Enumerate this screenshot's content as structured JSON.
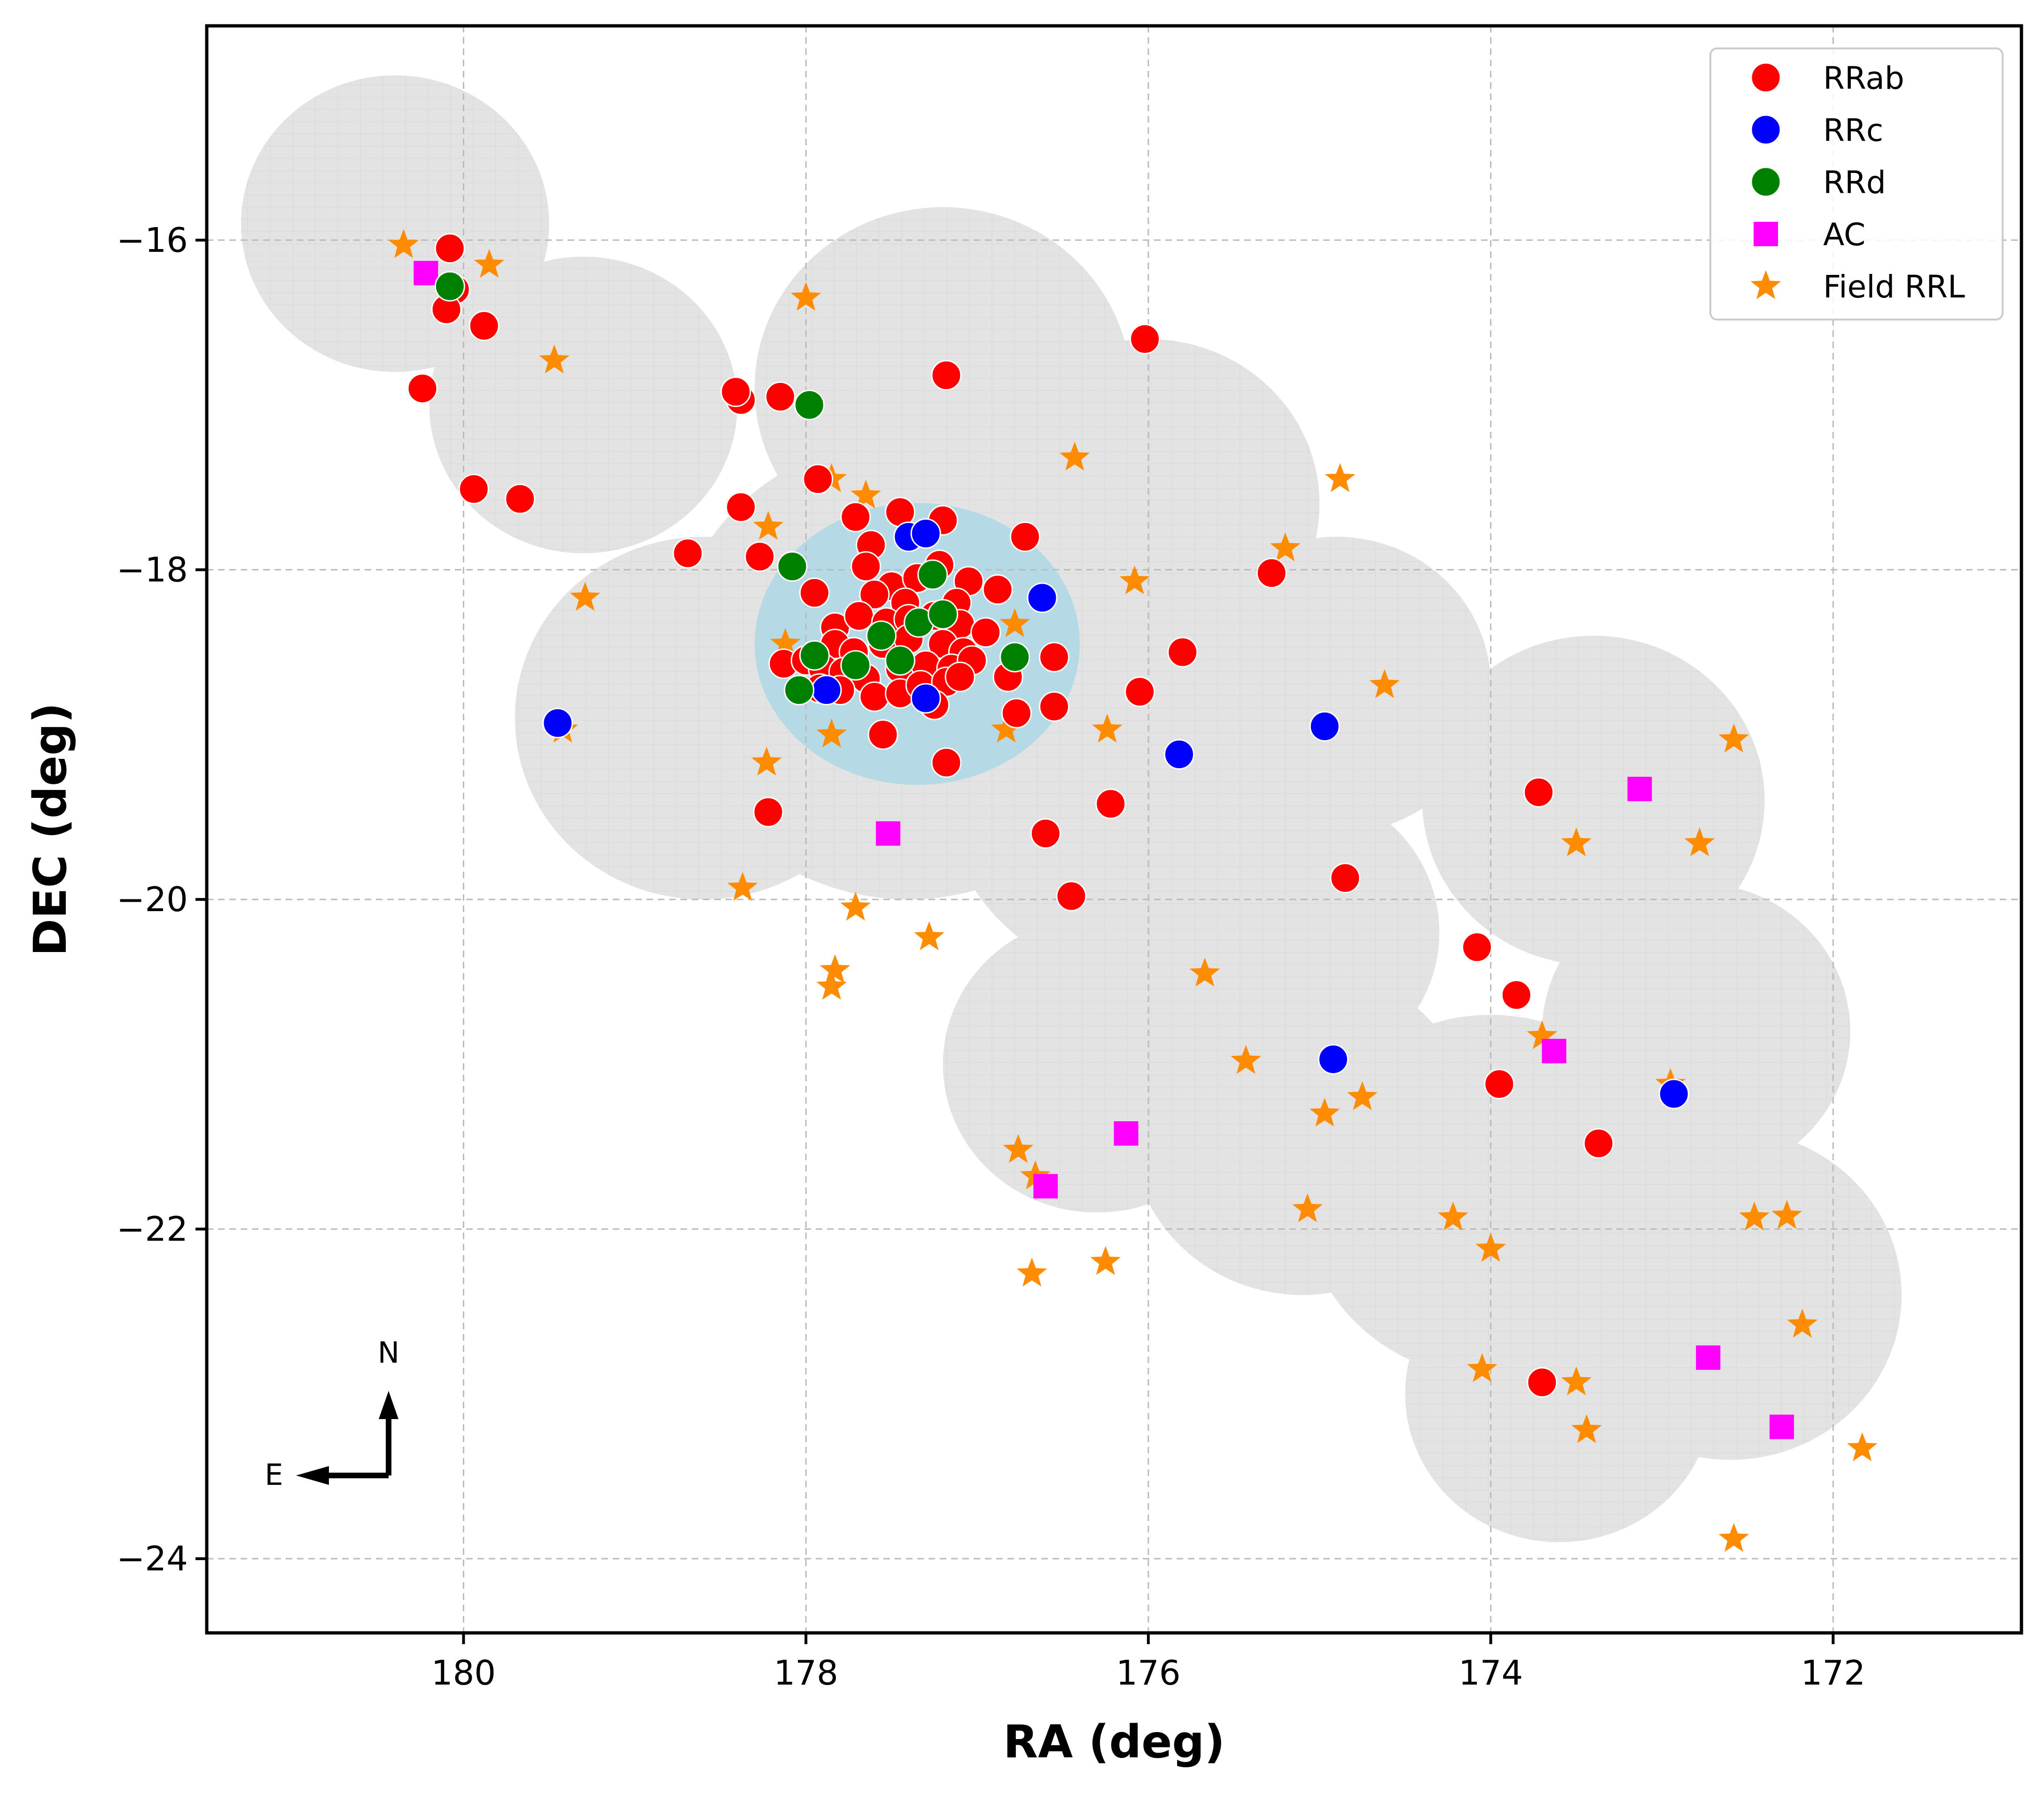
{
  "chart_data": {
    "type": "scatter",
    "title": "",
    "xlabel": "RA (deg)",
    "ylabel": "DEC (deg)",
    "xlim": [
      181.5,
      170.9
    ],
    "ylim": [
      -24.45,
      -14.7
    ],
    "x_inverted": true,
    "xticks": [
      180,
      178,
      176,
      174,
      172
    ],
    "yticks": [
      -16,
      -18,
      -20,
      -22,
      -24
    ],
    "xtick_labels": [
      "180",
      "178",
      "176",
      "174",
      "172"
    ],
    "ytick_labels": [
      "−16",
      "−18",
      "−20",
      "−22",
      "−24"
    ],
    "grid": true,
    "legend_position": "top-right",
    "compass": {
      "north_label": "N",
      "east_label": "E"
    },
    "footprint": {
      "description": "light grey survey footprint with light blue central field",
      "grey_blobs": [
        {
          "center": [
            180.4,
            -15.9
          ],
          "radius": 0.9
        },
        {
          "center": [
            179.3,
            -17.0
          ],
          "radius": 0.9
        },
        {
          "center": [
            177.2,
            -16.9
          ],
          "radius": 1.1
        },
        {
          "center": [
            176.0,
            -17.6
          ],
          "radius": 1.0
        },
        {
          "center": [
            178.6,
            -18.9
          ],
          "radius": 1.1
        },
        {
          "center": [
            177.4,
            -18.6
          ],
          "radius": 1.4
        },
        {
          "center": [
            176.0,
            -19.3
          ],
          "radius": 1.2
        },
        {
          "center": [
            174.9,
            -18.7
          ],
          "radius": 0.9
        },
        {
          "center": [
            175.2,
            -20.2
          ],
          "radius": 0.9
        },
        {
          "center": [
            176.3,
            -21.0
          ],
          "radius": 0.9
        },
        {
          "center": [
            175.1,
            -21.4
          ],
          "radius": 1.0
        },
        {
          "center": [
            174.0,
            -21.8
          ],
          "radius": 1.1
        },
        {
          "center": [
            173.4,
            -19.4
          ],
          "radius": 1.0
        },
        {
          "center": [
            172.8,
            -20.8
          ],
          "radius": 0.9
        },
        {
          "center": [
            172.6,
            -22.4
          ],
          "radius": 1.0
        },
        {
          "center": [
            173.6,
            -23.0
          ],
          "radius": 0.9
        }
      ],
      "central_field": {
        "center": [
          177.35,
          -18.45
        ],
        "radius": 0.95
      }
    },
    "series": [
      {
        "name": "RRab",
        "marker": "circle",
        "color": "#ff0000",
        "points": [
          [
            180.08,
            -16.05
          ],
          [
            180.05,
            -16.3
          ],
          [
            180.1,
            -16.42
          ],
          [
            179.88,
            -16.52
          ],
          [
            180.24,
            -16.9
          ],
          [
            179.94,
            -17.51
          ],
          [
            179.67,
            -17.57
          ],
          [
            178.38,
            -16.97
          ],
          [
            178.41,
            -16.92
          ],
          [
            178.15,
            -16.95
          ],
          [
            177.18,
            -16.82
          ],
          [
            176.02,
            -16.6
          ],
          [
            178.69,
            -17.9
          ],
          [
            178.38,
            -17.62
          ],
          [
            178.27,
            -17.92
          ],
          [
            177.93,
            -17.45
          ],
          [
            177.71,
            -17.68
          ],
          [
            177.45,
            -17.65
          ],
          [
            177.2,
            -17.7
          ],
          [
            177.62,
            -17.85
          ],
          [
            177.65,
            -17.98
          ],
          [
            176.72,
            -17.8
          ],
          [
            177.95,
            -18.14
          ],
          [
            177.83,
            -18.35
          ],
          [
            177.22,
            -17.97
          ],
          [
            177.05,
            -18.07
          ],
          [
            176.88,
            -18.12
          ],
          [
            177.12,
            -18.2
          ],
          [
            177.5,
            -18.1
          ],
          [
            177.35,
            -18.05
          ],
          [
            177.42,
            -18.2
          ],
          [
            177.6,
            -18.15
          ],
          [
            177.69,
            -18.28
          ],
          [
            177.53,
            -18.32
          ],
          [
            177.4,
            -18.3
          ],
          [
            177.25,
            -18.28
          ],
          [
            177.1,
            -18.33
          ],
          [
            176.95,
            -18.38
          ],
          [
            177.83,
            -18.45
          ],
          [
            177.72,
            -18.5
          ],
          [
            177.55,
            -18.45
          ],
          [
            177.4,
            -18.42
          ],
          [
            177.2,
            -18.45
          ],
          [
            177.08,
            -18.5
          ],
          [
            178.13,
            -18.57
          ],
          [
            178.0,
            -18.55
          ],
          [
            177.9,
            -18.6
          ],
          [
            177.78,
            -18.62
          ],
          [
            177.65,
            -18.66
          ],
          [
            177.45,
            -18.6
          ],
          [
            177.3,
            -18.58
          ],
          [
            177.15,
            -18.6
          ],
          [
            177.03,
            -18.55
          ],
          [
            177.92,
            -18.72
          ],
          [
            177.8,
            -18.73
          ],
          [
            177.6,
            -18.77
          ],
          [
            177.45,
            -18.75
          ],
          [
            177.33,
            -18.7
          ],
          [
            177.18,
            -18.68
          ],
          [
            177.25,
            -18.82
          ],
          [
            177.1,
            -18.65
          ],
          [
            177.55,
            -19.0
          ],
          [
            176.82,
            -18.65
          ],
          [
            176.77,
            -18.87
          ],
          [
            176.55,
            -18.53
          ],
          [
            176.55,
            -18.83
          ],
          [
            175.8,
            -18.5
          ],
          [
            176.05,
            -18.74
          ],
          [
            177.18,
            -19.17
          ],
          [
            178.22,
            -19.47
          ],
          [
            176.6,
            -19.6
          ],
          [
            176.22,
            -19.42
          ],
          [
            176.45,
            -19.98
          ],
          [
            175.28,
            -18.02
          ],
          [
            174.85,
            -19.87
          ],
          [
            173.72,
            -19.35
          ],
          [
            174.08,
            -20.29
          ],
          [
            173.85,
            -20.58
          ],
          [
            173.95,
            -21.12
          ],
          [
            173.37,
            -21.48
          ],
          [
            173.7,
            -22.93
          ]
        ]
      },
      {
        "name": "RRc",
        "marker": "circle",
        "color": "#0000ff",
        "points": [
          [
            177.4,
            -17.8
          ],
          [
            177.3,
            -17.78
          ],
          [
            176.62,
            -18.17
          ],
          [
            177.88,
            -18.73
          ],
          [
            177.3,
            -18.78
          ],
          [
            179.45,
            -18.93
          ],
          [
            175.82,
            -19.12
          ],
          [
            174.97,
            -18.95
          ],
          [
            174.92,
            -20.97
          ],
          [
            172.93,
            -21.18
          ]
        ]
      },
      {
        "name": "RRd",
        "marker": "circle",
        "color": "#008000",
        "points": [
          [
            180.08,
            -16.28
          ],
          [
            177.98,
            -17.0
          ],
          [
            178.08,
            -17.98
          ],
          [
            177.26,
            -18.03
          ],
          [
            177.34,
            -18.32
          ],
          [
            177.2,
            -18.27
          ],
          [
            177.56,
            -18.4
          ],
          [
            177.45,
            -18.55
          ],
          [
            177.95,
            -18.52
          ],
          [
            177.71,
            -18.58
          ],
          [
            178.04,
            -18.73
          ],
          [
            176.78,
            -18.53
          ]
        ]
      },
      {
        "name": "AC",
        "marker": "square",
        "color": "#ff00ff",
        "points": [
          [
            180.22,
            -16.2
          ],
          [
            177.52,
            -19.6
          ],
          [
            176.13,
            -21.42
          ],
          [
            176.6,
            -21.74
          ],
          [
            173.13,
            -19.33
          ],
          [
            173.63,
            -20.92
          ],
          [
            172.73,
            -22.78
          ],
          [
            172.3,
            -23.2
          ]
        ]
      },
      {
        "name": "Field RRL",
        "marker": "star",
        "color": "#ff8c00",
        "points": [
          [
            180.35,
            -16.03
          ],
          [
            179.85,
            -16.15
          ],
          [
            179.47,
            -16.73
          ],
          [
            178.0,
            -16.35
          ],
          [
            176.43,
            -17.32
          ],
          [
            177.85,
            -17.45
          ],
          [
            177.65,
            -17.55
          ],
          [
            174.88,
            -17.45
          ],
          [
            175.2,
            -17.87
          ],
          [
            178.22,
            -17.74
          ],
          [
            176.08,
            -18.07
          ],
          [
            179.29,
            -18.17
          ],
          [
            176.78,
            -18.33
          ],
          [
            178.12,
            -18.45
          ],
          [
            174.62,
            -18.7
          ],
          [
            179.42,
            -18.97
          ],
          [
            176.83,
            -18.97
          ],
          [
            177.85,
            -19.0
          ],
          [
            176.24,
            -18.97
          ],
          [
            178.23,
            -19.17
          ],
          [
            172.58,
            -19.03
          ],
          [
            173.5,
            -19.66
          ],
          [
            172.78,
            -19.66
          ],
          [
            178.37,
            -19.93
          ],
          [
            177.71,
            -20.05
          ],
          [
            177.28,
            -20.23
          ],
          [
            177.83,
            -20.43
          ],
          [
            177.85,
            -20.53
          ],
          [
            175.67,
            -20.45
          ],
          [
            175.43,
            -20.98
          ],
          [
            173.7,
            -20.83
          ],
          [
            172.95,
            -21.12
          ],
          [
            174.97,
            -21.3
          ],
          [
            174.75,
            -21.2
          ],
          [
            176.76,
            -21.52
          ],
          [
            176.66,
            -21.68
          ],
          [
            176.68,
            -22.27
          ],
          [
            176.25,
            -22.2
          ],
          [
            175.07,
            -21.88
          ],
          [
            174.22,
            -21.93
          ],
          [
            174.0,
            -22.12
          ],
          [
            172.46,
            -21.93
          ],
          [
            172.27,
            -21.92
          ],
          [
            174.05,
            -22.85
          ],
          [
            173.5,
            -22.93
          ],
          [
            173.44,
            -23.22
          ],
          [
            172.18,
            -22.58
          ],
          [
            171.83,
            -23.33
          ],
          [
            172.58,
            -23.88
          ]
        ]
      }
    ]
  }
}
